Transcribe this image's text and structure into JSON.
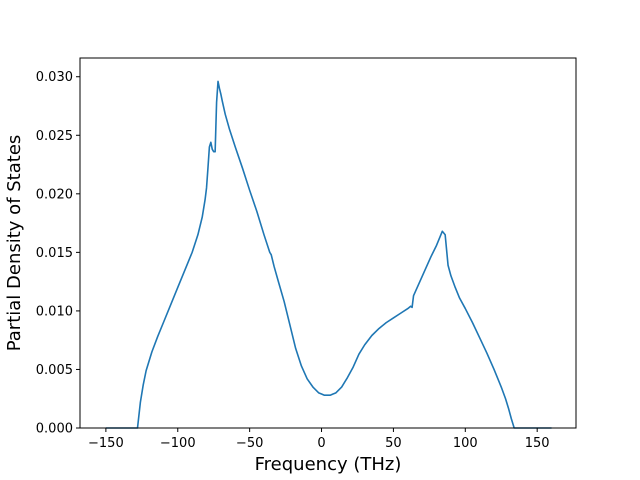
{
  "chart_data": {
    "type": "line",
    "title": "",
    "xlabel": "Frequency (THz)",
    "ylabel": "Partial Density of States",
    "xlim": [
      -168,
      177
    ],
    "ylim": [
      0,
      0.0316
    ],
    "xticks": [
      -150,
      -100,
      -50,
      0,
      50,
      100,
      150
    ],
    "xtick_labels": [
      "−150",
      "−100",
      "−50",
      "0",
      "50",
      "100",
      "150"
    ],
    "yticks": [
      0,
      0.005,
      0.01,
      0.015,
      0.02,
      0.025,
      0.03
    ],
    "ytick_labels": [
      "0.000",
      "0.005",
      "0.010",
      "0.015",
      "0.020",
      "0.025",
      "0.030"
    ],
    "grid": false,
    "legend": "none",
    "series": [
      {
        "color": "#1f77b4",
        "x": [
          -150,
          -140,
          -128,
          -126,
          -124,
          -122,
          -118,
          -114,
          -110,
          -105,
          -100,
          -95,
          -90,
          -86,
          -83,
          -81,
          -80,
          -79,
          -78,
          -77,
          -76,
          -75,
          -74,
          -73,
          -72,
          -71,
          -70,
          -69,
          -67,
          -64,
          -60,
          -55,
          -50,
          -45,
          -40,
          -36,
          -35,
          -33,
          -30,
          -26,
          -22,
          -18,
          -14,
          -10,
          -6,
          -2,
          0,
          2,
          4,
          6,
          8,
          10,
          14,
          18,
          22,
          26,
          30,
          35,
          40,
          45,
          50,
          55,
          60,
          62,
          63,
          64,
          68,
          72,
          76,
          80,
          84,
          86,
          87,
          88,
          90,
          93,
          96,
          100,
          105,
          110,
          115,
          120,
          125,
          128,
          130,
          132,
          134,
          140,
          160
        ],
        "y": [
          0,
          0,
          0,
          0.0022,
          0.0037,
          0.0049,
          0.0065,
          0.0078,
          0.009,
          0.0105,
          0.012,
          0.0135,
          0.015,
          0.0165,
          0.018,
          0.0195,
          0.0205,
          0.0222,
          0.024,
          0.0244,
          0.0238,
          0.0236,
          0.0236,
          0.0278,
          0.0296,
          0.029,
          0.0285,
          0.0279,
          0.0268,
          0.0255,
          0.024,
          0.0222,
          0.0203,
          0.0185,
          0.0165,
          0.015,
          0.0148,
          0.0138,
          0.0125,
          0.0108,
          0.0088,
          0.0068,
          0.0053,
          0.0042,
          0.0035,
          0.003,
          0.0029,
          0.0028,
          0.0028,
          0.0028,
          0.0029,
          0.003,
          0.0035,
          0.0043,
          0.0052,
          0.0063,
          0.0071,
          0.0079,
          0.0085,
          0.009,
          0.0094,
          0.0098,
          0.0102,
          0.0104,
          0.0103,
          0.0113,
          0.0124,
          0.0135,
          0.0146,
          0.0156,
          0.0168,
          0.0165,
          0.0152,
          0.0139,
          0.013,
          0.012,
          0.0111,
          0.0102,
          0.009,
          0.0077,
          0.0064,
          0.005,
          0.0035,
          0.0025,
          0.0017,
          0.0008,
          0,
          0,
          0
        ]
      }
    ]
  }
}
